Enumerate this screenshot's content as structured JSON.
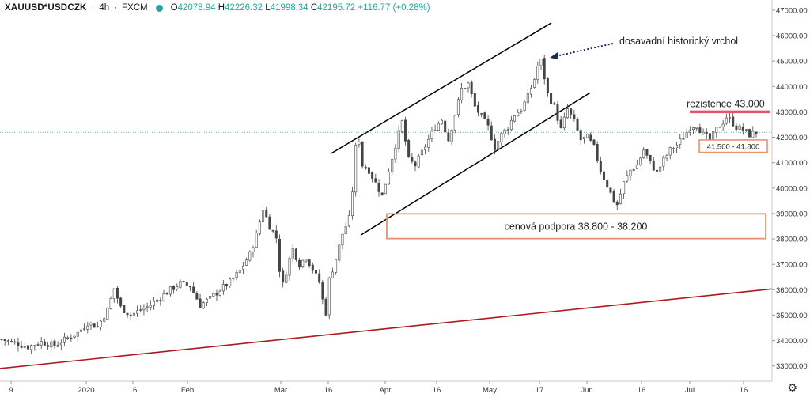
{
  "header": {
    "symbol": "XAUUSD*USDCZK",
    "interval": "4h",
    "source": "FXCM",
    "open_label": "O",
    "open": "42078.94",
    "high_label": "H",
    "high": "42226.32",
    "low_label": "L",
    "low": "41998.34",
    "close_label": "C",
    "close": "42195.72",
    "change": "+116.77 (+0.28%)"
  },
  "colors": {
    "up": "#26a69a",
    "candle": "#444444",
    "resistance": "#e0566b",
    "support_box": "#e8916a",
    "trendline": "#b0171e",
    "channel": "#000000",
    "arrow": "#1f2a5c"
  },
  "chart_data": {
    "type": "candlestick",
    "title": "",
    "xlabel": "",
    "ylabel": "",
    "ylim": [
      32400,
      47400
    ],
    "y_ticks": [
      "33000.00",
      "34000.00",
      "35000.00",
      "36000.00",
      "37000.00",
      "38000.00",
      "39000.00",
      "40000.00",
      "41000.00",
      "42000.00",
      "43000.00",
      "44000.00",
      "45000.00",
      "46000.00",
      "47000.00"
    ],
    "x_ticks": [
      "9",
      "2020",
      "16",
      "Feb",
      "Mar",
      "16",
      "Apr",
      "16",
      "May",
      "17",
      "Jun",
      "16",
      "Jul",
      "16"
    ],
    "last_price": 42195.72,
    "price_path": [
      [
        0,
        34050
      ],
      [
        4,
        33900
      ],
      [
        8,
        33750
      ],
      [
        12,
        33950
      ],
      [
        16,
        33800
      ],
      [
        20,
        34100
      ],
      [
        23,
        34300
      ],
      [
        26,
        34700
      ],
      [
        29,
        34550
      ],
      [
        32,
        35200
      ],
      [
        34,
        36050
      ],
      [
        36,
        35300
      ],
      [
        39,
        35000
      ],
      [
        42,
        35200
      ],
      [
        45,
        35400
      ],
      [
        48,
        35700
      ],
      [
        51,
        36000
      ],
      [
        54,
        36250
      ],
      [
        57,
        36150
      ],
      [
        60,
        35400
      ],
      [
        63,
        35650
      ],
      [
        66,
        36000
      ],
      [
        69,
        36300
      ],
      [
        72,
        36750
      ],
      [
        75,
        37400
      ],
      [
        77,
        38150
      ],
      [
        79,
        39200
      ],
      [
        81,
        38500
      ],
      [
        83,
        38050
      ],
      [
        84,
        36800
      ],
      [
        85,
        36200
      ],
      [
        87,
        37200
      ],
      [
        88,
        37600
      ],
      [
        90,
        37000
      ],
      [
        92,
        37300
      ],
      [
        94,
        36800
      ],
      [
        96,
        36300
      ],
      [
        97,
        35600
      ],
      [
        98,
        35100
      ],
      [
        99,
        36400
      ],
      [
        101,
        37200
      ],
      [
        103,
        38200
      ],
      [
        105,
        38800
      ],
      [
        106,
        39900
      ],
      [
        107,
        41600
      ],
      [
        108,
        41900
      ],
      [
        109,
        40900
      ],
      [
        111,
        40700
      ],
      [
        113,
        40200
      ],
      [
        115,
        39700
      ],
      [
        117,
        40700
      ],
      [
        119,
        41700
      ],
      [
        121,
        42600
      ],
      [
        123,
        41100
      ],
      [
        125,
        40900
      ],
      [
        127,
        41400
      ],
      [
        129,
        41900
      ],
      [
        131,
        42400
      ],
      [
        133,
        42700
      ],
      [
        135,
        41900
      ],
      [
        137,
        42900
      ],
      [
        139,
        43900
      ],
      [
        141,
        44100
      ],
      [
        143,
        43200
      ],
      [
        145,
        42800
      ],
      [
        147,
        42400
      ],
      [
        149,
        41600
      ],
      [
        151,
        42100
      ],
      [
        153,
        42400
      ],
      [
        155,
        42900
      ],
      [
        157,
        43100
      ],
      [
        159,
        43600
      ],
      [
        161,
        44300
      ],
      [
        162,
        44800
      ],
      [
        163,
        45000
      ],
      [
        165,
        43700
      ],
      [
        167,
        43200
      ],
      [
        169,
        42300
      ],
      [
        171,
        43100
      ],
      [
        173,
        42600
      ],
      [
        175,
        41900
      ],
      [
        177,
        42000
      ],
      [
        179,
        41600
      ],
      [
        181,
        40700
      ],
      [
        183,
        40100
      ],
      [
        185,
        39500
      ],
      [
        186,
        39350
      ],
      [
        188,
        40200
      ],
      [
        190,
        40700
      ],
      [
        192,
        40900
      ],
      [
        194,
        41500
      ],
      [
        196,
        41000
      ],
      [
        198,
        40600
      ],
      [
        200,
        41100
      ],
      [
        202,
        41500
      ],
      [
        204,
        41700
      ],
      [
        206,
        42000
      ],
      [
        208,
        42400
      ],
      [
        210,
        42500
      ],
      [
        212,
        42100
      ],
      [
        214,
        41900
      ],
      [
        216,
        42300
      ],
      [
        218,
        42600
      ],
      [
        219,
        42800
      ],
      [
        220,
        42700
      ],
      [
        222,
        42400
      ],
      [
        224,
        42300
      ],
      [
        226,
        42100
      ],
      [
        228,
        42200
      ]
    ],
    "annotations": {
      "peak_label": "dosavadní historický vrchol",
      "resistance_label": "rezistence 43.000",
      "resistance_price": 43000,
      "support_label": "cenová podpora 38.800 - 38.200",
      "support_range": [
        38200,
        38800
      ],
      "small_box_label": "41.500 - 41.800",
      "small_box_range": [
        41500,
        41800
      ]
    }
  }
}
